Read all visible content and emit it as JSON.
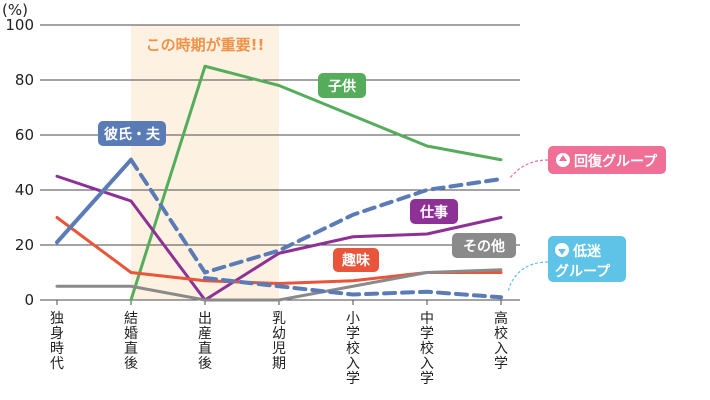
{
  "chart_data": {
    "type": "line",
    "y_unit": "(%)",
    "ylim": [
      0,
      100
    ],
    "yticks": [
      0,
      20,
      40,
      60,
      80,
      100
    ],
    "grid": true,
    "categories": [
      "独身時代",
      "結婚直後",
      "出産直後",
      "乳幼児期",
      "小学校入学",
      "中学校入学",
      "高校入学"
    ],
    "highlight": {
      "label": "この時期が重要!!",
      "from": 1,
      "to": 3,
      "color": "#fdf1e1"
    },
    "series": [
      {
        "name": "彼氏・夫",
        "style": "solid",
        "color": "#5a7bb5",
        "points": [
          [
            0,
            21
          ],
          [
            1,
            51
          ]
        ]
      },
      {
        "name": "回復グループ",
        "style": "dashed",
        "color": "#5a7bb5",
        "points": [
          [
            1,
            51
          ],
          [
            2,
            10
          ],
          [
            3,
            18
          ],
          [
            4,
            31
          ],
          [
            5,
            40
          ],
          [
            6,
            44
          ]
        ]
      },
      {
        "name": "低迷グループ",
        "style": "dashed",
        "color": "#5a7bb5",
        "points": [
          [
            2,
            8
          ],
          [
            3,
            5
          ],
          [
            4,
            2
          ],
          [
            5,
            3
          ],
          [
            6,
            1
          ]
        ]
      },
      {
        "name": "子供",
        "style": "solid",
        "color": "#55ad5b",
        "points": [
          [
            1,
            0
          ],
          [
            2,
            85
          ],
          [
            3,
            78
          ],
          [
            4,
            67
          ],
          [
            5,
            56
          ],
          [
            6,
            51
          ]
        ]
      },
      {
        "name": "仕事",
        "style": "solid",
        "color": "#8d3196",
        "points": [
          [
            0,
            45
          ],
          [
            1,
            36
          ],
          [
            2,
            0
          ],
          [
            3,
            17
          ],
          [
            4,
            23
          ],
          [
            5,
            24
          ],
          [
            6,
            30
          ]
        ]
      },
      {
        "name": "趣味",
        "style": "solid",
        "color": "#e8553a",
        "points": [
          [
            0,
            30
          ],
          [
            1,
            10
          ],
          [
            2,
            7
          ],
          [
            3,
            6
          ],
          [
            4,
            7
          ],
          [
            5,
            10
          ],
          [
            6,
            10
          ]
        ]
      },
      {
        "name": "その他",
        "style": "solid",
        "color": "#8a8a8a",
        "points": [
          [
            0,
            5
          ],
          [
            1,
            5
          ],
          [
            2,
            0
          ],
          [
            3,
            0
          ],
          [
            4,
            5
          ],
          [
            5,
            10
          ],
          [
            6,
            11
          ]
        ]
      }
    ],
    "callouts": [
      {
        "key": "boyfriend",
        "text": "彼氏・夫",
        "color": "#5a7bb5"
      },
      {
        "key": "child",
        "text": "子供",
        "color": "#55ad5b"
      },
      {
        "key": "work",
        "text": "仕事",
        "color": "#8d3196"
      },
      {
        "key": "hobby",
        "text": "趣味",
        "color": "#e8553a"
      },
      {
        "key": "other",
        "text": "その他",
        "color": "#8a8a8a"
      },
      {
        "key": "recovery",
        "text": "回復グループ",
        "color": "#ef6f97"
      },
      {
        "key": "slump1",
        "text": "低迷",
        "color": "#5fc3e8"
      },
      {
        "key": "slump2",
        "text": "グループ",
        "color": "#5fc3e8"
      }
    ]
  }
}
